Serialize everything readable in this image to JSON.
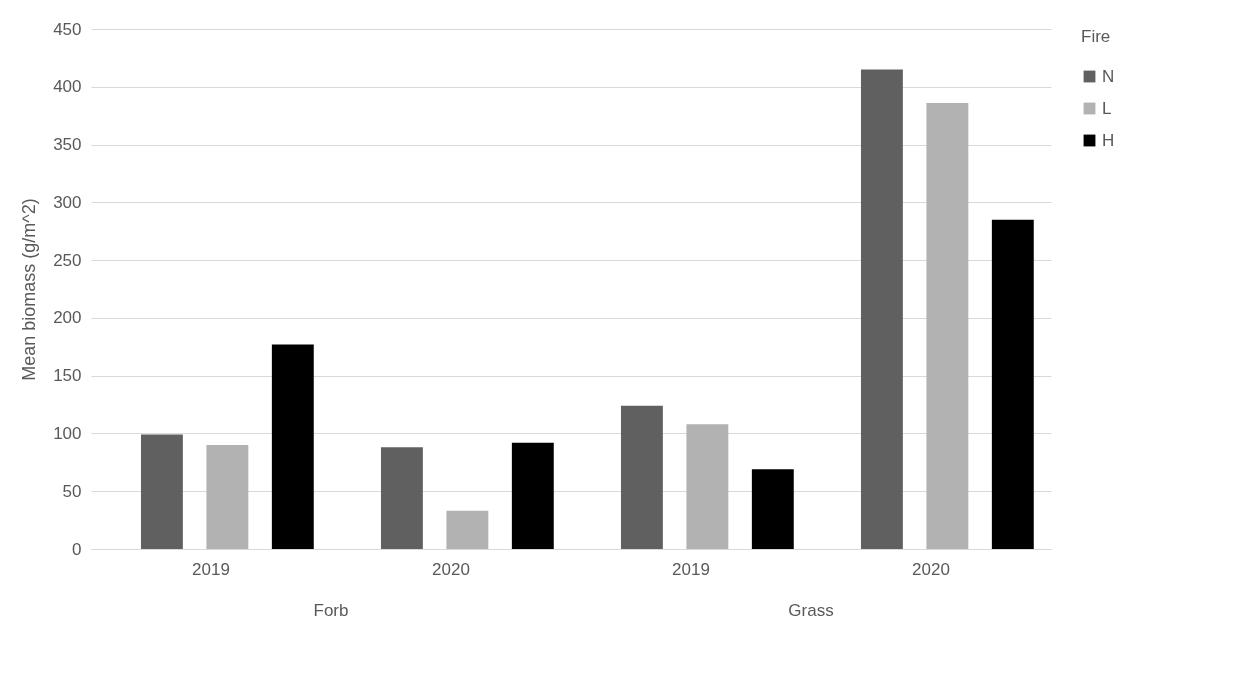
{
  "chart_data": {
    "type": "bar",
    "ylabel": "Mean biomass (g/m^2)",
    "legend_title": "Fire",
    "categories": [
      "2019",
      "2020",
      "2019",
      "2020"
    ],
    "annotations": [
      "Forb",
      "Grass"
    ],
    "series": [
      {
        "name": "N",
        "color": "#606060",
        "values": [
          99,
          88,
          124,
          415
        ]
      },
      {
        "name": "L",
        "color": "#b2b2b2",
        "values": [
          90,
          33,
          108,
          386
        ]
      },
      {
        "name": "H",
        "color": "#000000",
        "values": [
          177,
          92,
          69,
          285
        ]
      }
    ],
    "ylim": [
      0,
      450
    ],
    "yticks": [
      0,
      50,
      100,
      150,
      200,
      250,
      300,
      350,
      400,
      450
    ],
    "grid": "y",
    "legend": "right"
  }
}
